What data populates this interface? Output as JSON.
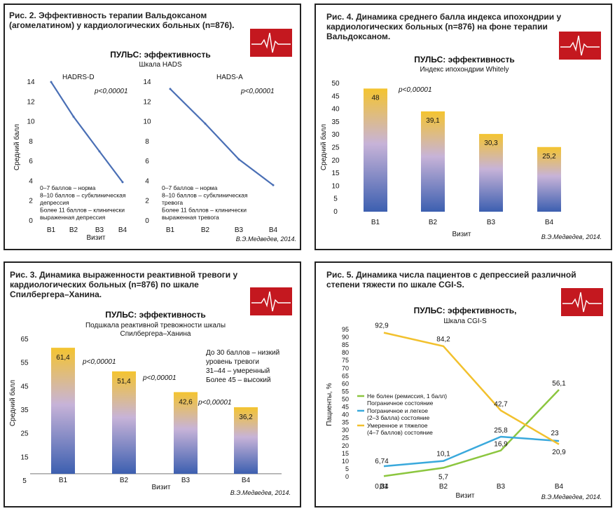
{
  "panels": [
    {
      "title": "Рис. 2. Эффективность терапии Вальдоксаном (агомелатином) у кардиологических больных (n=876)."
    },
    {
      "title": "Рис. 4. Динамика среднего балла индекса ипохондрии у кардиологических больных (n=876) на фоне терапии Вальдоксаном."
    },
    {
      "title": "Рис. 3. Динамика выраженности реактивной тревоги у кардиологических больных (n=876) по шкале Спилбергера–Ханина."
    },
    {
      "title": "Рис. 5. Динамика числа пациентов с депрессией различной степени тяжести по шкале CGI-S."
    }
  ],
  "colors": {
    "line_blue": "#4a6fb5",
    "bar_top": "#f4c430",
    "bar_bottom": "#3c5fb0",
    "green": "#8cc63f",
    "cyan": "#3aa9dc",
    "yellow": "#f2c12e",
    "ecg_red": "#c4181f"
  },
  "icons": [
    "ecg-icon"
  ],
  "chart_data": [
    {
      "type": "line",
      "title": "ПУЛЬС: эффективность",
      "subtitle": "Шкала HADS",
      "subcharts": [
        {
          "name": "HADRS-D",
          "categories": [
            "В1",
            "В2",
            "В3",
            "В4"
          ],
          "values": [
            14,
            10.5,
            7,
            3.9
          ],
          "pvalue": "p<0,00001",
          "notes": [
            "0–7 баллов – норма",
            "8–10 баллов – субклиническая",
            "депрессия",
            "Более 11 баллов – клинически",
            "выраженная депрессия"
          ]
        },
        {
          "name": "HADS-A",
          "categories": [
            "В1",
            "В2",
            "В3",
            "В4"
          ],
          "values": [
            13.3,
            9.8,
            6.2,
            3.6
          ],
          "pvalue": "p<0,00001",
          "notes": [
            "0–7 баллов – норма",
            "8–10 баллов – субклиническая",
            "тревога",
            "Более 11 баллов – клинически",
            "выраженная тревога"
          ]
        }
      ],
      "yticks": [
        "0",
        "2",
        "4",
        "6",
        "8",
        "10",
        "12",
        "14"
      ],
      "ylim": [
        0,
        14
      ],
      "ylabel": "Средний балл",
      "xlabel": "Визит",
      "source": "В.Э.Медведев, 2014."
    },
    {
      "type": "bar",
      "title": "ПУЛЬС: эффективность",
      "subtitle": "Индекс ипохондрии Whitely",
      "categories": [
        "В1",
        "В2",
        "В3",
        "В4"
      ],
      "values": [
        48,
        39.1,
        30.3,
        25.2
      ],
      "labels": [
        "48",
        "39,1",
        "30,3",
        "25,2"
      ],
      "yticks": [
        "0",
        "5",
        "10",
        "15",
        "20",
        "25",
        "30",
        "35",
        "40",
        "45",
        "50"
      ],
      "ylim": [
        0,
        50
      ],
      "pvalue": "p<0,00001",
      "ylabel": "Средний балл",
      "xlabel": "Визит",
      "source": "В.Э.Медведев, 2014."
    },
    {
      "type": "bar",
      "title": "ПУЛЬС: эффективность",
      "subtitle": "Подшкала реактивной тревожности шкалы Спилбергера–Ханина",
      "subtitle_lines": [
        "Подшкала реактивной тревожности шкалы",
        "Спилбергера–Ханина"
      ],
      "categories": [
        "В1",
        "В2",
        "В3",
        "В4"
      ],
      "values": [
        61.4,
        51.4,
        42.6,
        36.2
      ],
      "labels": [
        "61,4",
        "51,4",
        "42,6",
        "36,2"
      ],
      "yticks": [
        "5",
        "15",
        "25",
        "35",
        "45",
        "55",
        "65"
      ],
      "ylim": [
        5,
        65
      ],
      "pvalues": [
        "p<0,00001",
        "p<0,00001",
        "p<0,00001"
      ],
      "notes": [
        "До 30 баллов – низкий",
        "уровень тревоги",
        "31–44 – умеренный",
        "Более 45 – высокий"
      ],
      "ylabel": "Средний балл",
      "xlabel": "Визит",
      "source": "В.Э.Медведев, 2014."
    },
    {
      "type": "line",
      "title": "ПУЛЬС: эффективность,",
      "subtitle": "Шкала CGI-S",
      "categories": [
        "В1",
        "В2",
        "В3",
        "В4"
      ],
      "series": [
        {
          "name": "Не болен (ремиссия, 1 балл) Пограничное состояние",
          "legend_lines": [
            "Не болен (ремиссия, 1 балл)",
            "Пограничное состояние"
          ],
          "values": [
            0.34,
            5.7,
            16.9,
            56.1
          ],
          "labels": [
            "0,34",
            "5,7",
            "16,9",
            "56,1"
          ],
          "color": "#8cc63f"
        },
        {
          "name": "Пограничное и легкое (2–3 балла) состояние",
          "legend_lines": [
            "Пограничное и легкое",
            "(2–3 балла) состояние"
          ],
          "values": [
            6.74,
            10.1,
            25.8,
            23
          ],
          "labels": [
            "6,74",
            "10,1",
            "25,8",
            "23"
          ],
          "color": "#3aa9dc"
        },
        {
          "name": "Умеренное и тяжелое (4–7 баллов) состояние",
          "legend_lines": [
            "Умеренное и тяжелое",
            "(4–7 баллов) состояние"
          ],
          "values": [
            92.9,
            84.2,
            42.7,
            20.9
          ],
          "labels": [
            "92,9",
            "84,2",
            "42,7",
            "20,9"
          ],
          "color": "#f2c12e"
        }
      ],
      "yticks": [
        "0",
        "5",
        "10",
        "15",
        "20",
        "25",
        "30",
        "35",
        "40",
        "45",
        "50",
        "55",
        "60",
        "65",
        "70",
        "75",
        "80",
        "85",
        "90",
        "95"
      ],
      "ylim": [
        0,
        95
      ],
      "ylabel": "Пациенты, %",
      "xlabel": "Визит",
      "source": "В.Э.Медведев, 2014."
    }
  ]
}
